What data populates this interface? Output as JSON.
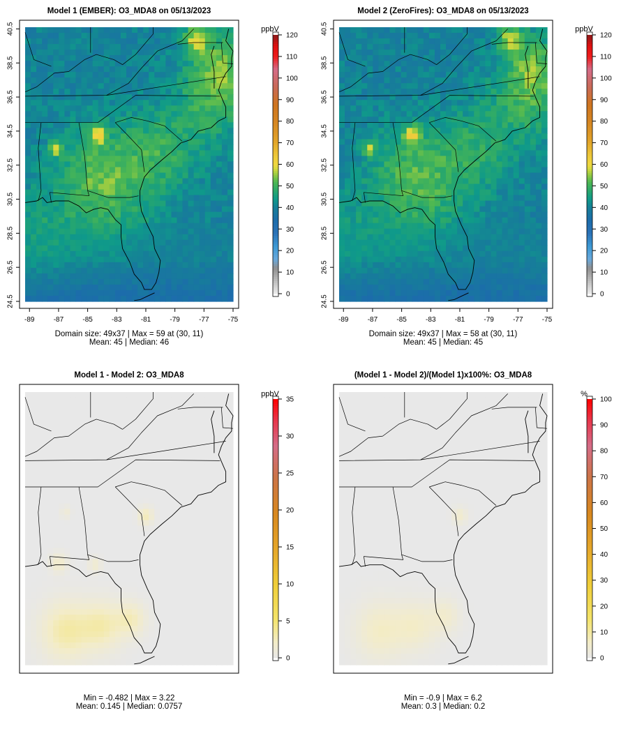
{
  "chart_data": [
    {
      "type": "heatmap",
      "title": "Model 1 (EMBER): O3_MDA8 on 05/13/2023",
      "x_ticks": [
        "-89",
        "-87",
        "-85",
        "-83",
        "-81",
        "-79",
        "-77",
        "-75"
      ],
      "y_ticks": [
        "24.5",
        "26.5",
        "28.5",
        "30.5",
        "32.5",
        "34.5",
        "36.5",
        "38.5",
        "40.5"
      ],
      "xlim": [
        -89,
        -75
      ],
      "ylim": [
        24.5,
        40.5
      ],
      "colorbar_label": "ppbV",
      "colorbar_ticks": [
        "0",
        "10",
        "20",
        "30",
        "40",
        "50",
        "60",
        "70",
        "80",
        "90",
        "100",
        "110",
        "120"
      ],
      "colorbar_range": [
        0,
        120
      ],
      "palette": "ozone",
      "stats_line1": "Domain size: 49x37 | Max = 59 at (30, 11)",
      "stats_line2": "Mean: 45 |  Median: 46",
      "field": {
        "base": 40,
        "lat_gradient": 0,
        "noise": 3,
        "hotspots": [
          {
            "lon": -84.3,
            "lat": 34.3,
            "value": 59,
            "radius": 0.35
          },
          {
            "lon": -87.2,
            "lat": 33.5,
            "value": 56,
            "radius": 0.3
          },
          {
            "lon": -77.6,
            "lat": 39.9,
            "value": 55,
            "radius": 0.6
          },
          {
            "lon": -75.8,
            "lat": 38.5,
            "value": 50,
            "radius": 1.3
          },
          {
            "lon": -76.5,
            "lat": 36.3,
            "value": 49,
            "radius": 1.8
          },
          {
            "lon": -80.0,
            "lat": 33.3,
            "value": 48,
            "radius": 1.8
          },
          {
            "lon": -83.6,
            "lat": 30.8,
            "value": 48,
            "radius": 2.2
          },
          {
            "lon": -88.5,
            "lat": 28.5,
            "value": 45,
            "radius": 2.0
          },
          {
            "lon": -84.5,
            "lat": 32.5,
            "value": 46,
            "radius": 2.0
          }
        ]
      }
    },
    {
      "type": "heatmap",
      "title": "Model 2 (ZeroFires): O3_MDA8 on 05/13/2023",
      "x_ticks": [
        "-89",
        "-87",
        "-85",
        "-83",
        "-81",
        "-79",
        "-77",
        "-75"
      ],
      "y_ticks": [
        "24.5",
        "26.5",
        "28.5",
        "30.5",
        "32.5",
        "34.5",
        "36.5",
        "38.5",
        "40.5"
      ],
      "xlim": [
        -89,
        -75
      ],
      "ylim": [
        24.5,
        40.5
      ],
      "colorbar_label": "ppbV",
      "colorbar_ticks": [
        "0",
        "10",
        "20",
        "30",
        "40",
        "50",
        "60",
        "70",
        "80",
        "90",
        "100",
        "110",
        "120"
      ],
      "colorbar_range": [
        0,
        120
      ],
      "palette": "ozone",
      "stats_line1": "Domain size: 49x37 | Max = 58 at (30, 11)",
      "stats_line2": "Mean: 45 |  Median: 45",
      "field": {
        "base": 40,
        "lat_gradient": 0,
        "noise": 3,
        "hotspots": [
          {
            "lon": -84.3,
            "lat": 34.3,
            "value": 58,
            "radius": 0.35
          },
          {
            "lon": -87.2,
            "lat": 33.5,
            "value": 55,
            "radius": 0.3
          },
          {
            "lon": -77.6,
            "lat": 39.9,
            "value": 54,
            "radius": 0.6
          },
          {
            "lon": -75.8,
            "lat": 38.5,
            "value": 50,
            "radius": 1.3
          },
          {
            "lon": -76.5,
            "lat": 36.3,
            "value": 49,
            "radius": 1.8
          },
          {
            "lon": -80.0,
            "lat": 33.3,
            "value": 47,
            "radius": 1.8
          },
          {
            "lon": -83.6,
            "lat": 30.8,
            "value": 47,
            "radius": 2.2
          },
          {
            "lon": -88.5,
            "lat": 28.5,
            "value": 44,
            "radius": 2.0
          },
          {
            "lon": -84.5,
            "lat": 32.5,
            "value": 46,
            "radius": 2.0
          }
        ]
      }
    },
    {
      "type": "heatmap",
      "title": "Model 1 - Model 2: O3_MDA8",
      "colorbar_label": "ppbV",
      "colorbar_ticks": [
        "0",
        "5",
        "10",
        "15",
        "20",
        "25",
        "30",
        "35"
      ],
      "colorbar_range": [
        0,
        35
      ],
      "palette": "diff",
      "stats_line1": "Min = -0.482 | Max = 3.22",
      "stats_line2": "Mean: 0.145 |  Median: 0.0757",
      "field": {
        "base": 0,
        "noise": 0,
        "hotspots": [
          {
            "lon": -86.5,
            "lat": 26.5,
            "value": 3.2,
            "radius": 1.2
          },
          {
            "lon": -84.0,
            "lat": 26.8,
            "value": 2.8,
            "radius": 1.0
          },
          {
            "lon": -82.0,
            "lat": 27.2,
            "value": 2.4,
            "radius": 0.7
          },
          {
            "lon": -81.0,
            "lat": 33.3,
            "value": 2.6,
            "radius": 0.35
          },
          {
            "lon": -87.0,
            "lat": 30.5,
            "value": 2.0,
            "radius": 0.4
          },
          {
            "lon": -84.5,
            "lat": 30.4,
            "value": 1.6,
            "radius": 0.3
          },
          {
            "lon": -86.5,
            "lat": 33.5,
            "value": 1.2,
            "radius": 0.25
          }
        ]
      }
    },
    {
      "type": "heatmap",
      "title": "(Model 1 - Model 2)/(Model 1)x100%: O3_MDA8",
      "colorbar_label": "%",
      "colorbar_ticks": [
        "0",
        "10",
        "20",
        "30",
        "40",
        "50",
        "60",
        "70",
        "80",
        "90",
        "100"
      ],
      "colorbar_range": [
        0,
        100
      ],
      "palette": "diff",
      "stats_line1": "Min = -0.9 | Max = 6.2",
      "stats_line2": "Mean: 0.3 |  Median: 0.2",
      "field": {
        "base": 0,
        "noise": 0,
        "hotspots": [
          {
            "lon": -86.5,
            "lat": 26.5,
            "value": 6.2,
            "radius": 1.2
          },
          {
            "lon": -84.0,
            "lat": 26.8,
            "value": 5.4,
            "radius": 1.0
          },
          {
            "lon": -82.0,
            "lat": 27.4,
            "value": 4.6,
            "radius": 0.7
          },
          {
            "lon": -81.0,
            "lat": 33.3,
            "value": 5.0,
            "radius": 0.35
          }
        ]
      }
    }
  ]
}
